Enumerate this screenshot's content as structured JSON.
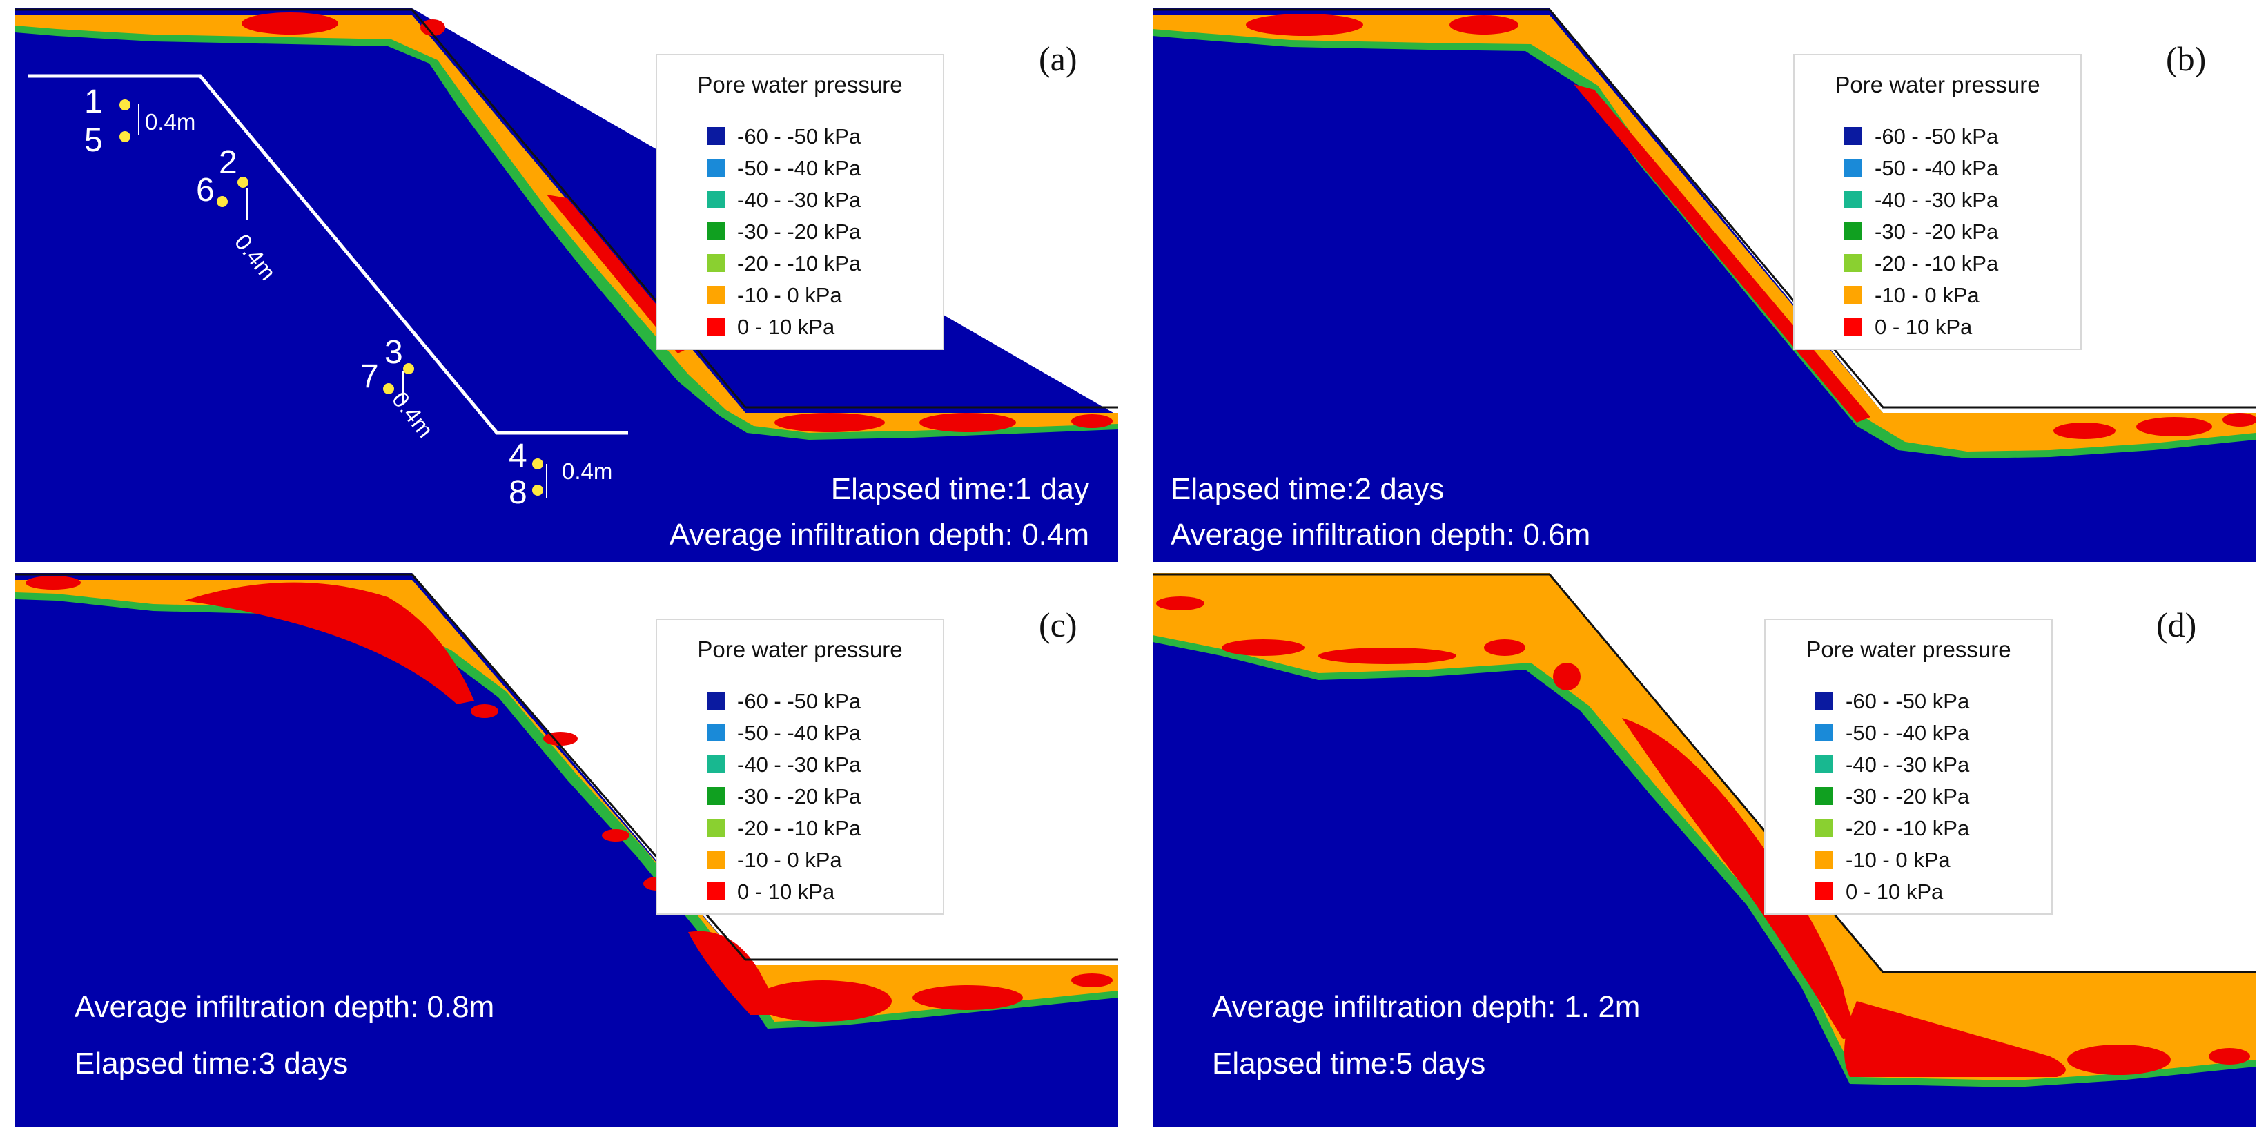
{
  "colors": {
    "soil": "#0000aa",
    "sky": "#ffffff",
    "edge_green": "#2ab440",
    "edge_teal": "#20a8a0",
    "zone_orange": "#ffa500",
    "zone_red": "#ee0000",
    "ground_line": "#111111"
  },
  "legend": {
    "title": "Pore water pressure",
    "items": [
      {
        "label": "-60 - -50 kPa",
        "color": "#0a1aa0"
      },
      {
        "label": "-50 - -40 kPa",
        "color": "#1a8ad8"
      },
      {
        "label": "-40 - -30 kPa",
        "color": "#18b890"
      },
      {
        "label": "-30 - -20 kPa",
        "color": "#10a020"
      },
      {
        "label": "-20 - -10 kPa",
        "color": "#8ad030"
      },
      {
        "label": "-10 - 0 kPa",
        "color": "#ffa500"
      },
      {
        "label": "0 - 10 kPa",
        "color": "#ff0000"
      }
    ]
  },
  "panels": [
    {
      "id": "a",
      "label": "(a)",
      "elapsed": "Elapsed time:1 day",
      "depth": "Average infiltration depth: 0.4m"
    },
    {
      "id": "b",
      "label": "(b)",
      "elapsed": "Elapsed time:2 days",
      "depth": "Average infiltration depth: 0.6m"
    },
    {
      "id": "c",
      "label": "(c)",
      "elapsed": "Elapsed time:3 days",
      "depth": "Average infiltration depth: 0.8m"
    },
    {
      "id": "d",
      "label": "(d)",
      "elapsed": "Elapsed time:5 days",
      "depth": "Average infiltration depth: 1. 2m"
    }
  ],
  "sensors": {
    "numbers": [
      "1",
      "5",
      "2",
      "6",
      "3",
      "7",
      "4",
      "8"
    ],
    "spacing_labels": [
      "0.4m",
      "0.4m",
      "0.4m",
      "0.4m"
    ]
  }
}
